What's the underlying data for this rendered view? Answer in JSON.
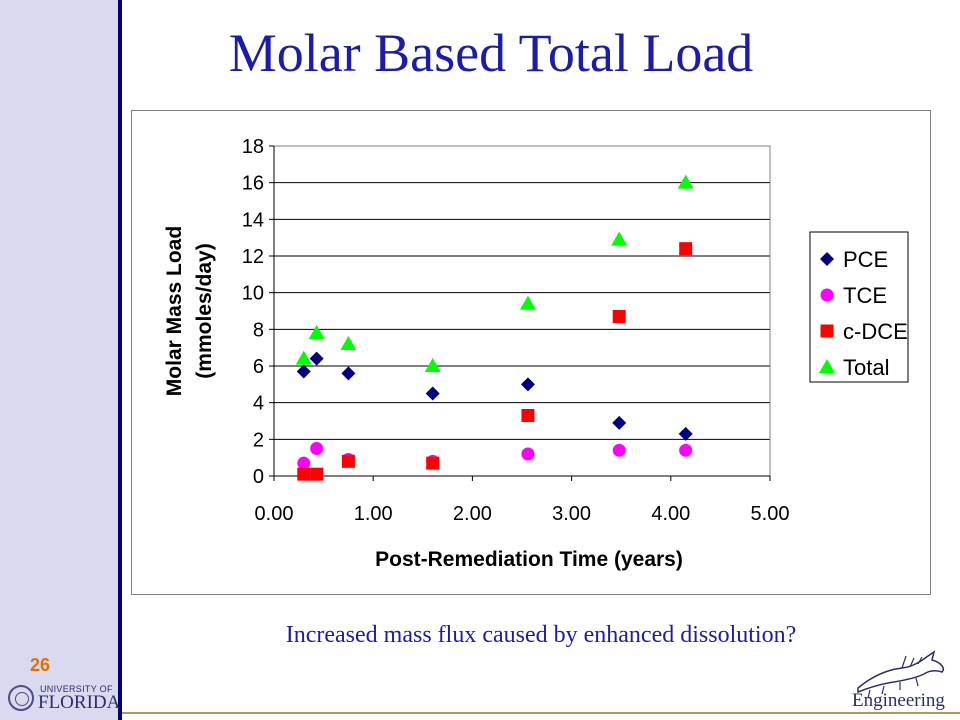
{
  "slide": {
    "title": "Molar Based Total Load",
    "caption": "Increased mass flux caused by enhanced dissolution?",
    "page_number": "26",
    "logo_left": {
      "line1": "UNIVERSITY OF",
      "line2": "FLORIDA"
    },
    "logo_right": {
      "text": "Engineering"
    },
    "colors": {
      "title": "#1c1caa",
      "sidebar": "#d9d9f0",
      "rule": "#000080",
      "page_number": "#e07000"
    }
  },
  "chart_data": {
    "type": "scatter",
    "title": "",
    "xlabel": "Post-Remediation Time (years)",
    "ylabel_lines": [
      "Molar Mass Load",
      "(mmoles/day)"
    ],
    "xlim": [
      0,
      5
    ],
    "ylim": [
      0,
      18
    ],
    "x_ticks": [
      "0.00",
      "1.00",
      "2.00",
      "3.00",
      "4.00",
      "5.00"
    ],
    "y_ticks": [
      "0",
      "2",
      "4",
      "6",
      "8",
      "10",
      "12",
      "14",
      "16",
      "18"
    ],
    "grid": "horizontal",
    "legend_position": "right",
    "series": [
      {
        "name": "PCE",
        "marker": "diamond",
        "color": "#000080",
        "points": [
          [
            0.3,
            5.7
          ],
          [
            0.43,
            6.4
          ],
          [
            0.75,
            5.6
          ],
          [
            1.6,
            4.5
          ],
          [
            2.56,
            5.0
          ],
          [
            3.48,
            2.9
          ],
          [
            4.15,
            2.3
          ]
        ]
      },
      {
        "name": "TCE",
        "marker": "circle",
        "color": "#ff00ff",
        "points": [
          [
            0.3,
            0.7
          ],
          [
            0.43,
            1.5
          ],
          [
            0.75,
            0.9
          ],
          [
            1.6,
            0.8
          ],
          [
            2.56,
            1.2
          ],
          [
            3.48,
            1.4
          ],
          [
            4.15,
            1.4
          ]
        ]
      },
      {
        "name": "c-DCE",
        "marker": "square",
        "color": "#ff0000",
        "points": [
          [
            0.3,
            0.1
          ],
          [
            0.43,
            0.1
          ],
          [
            0.75,
            0.8
          ],
          [
            1.6,
            0.7
          ],
          [
            2.56,
            3.3
          ],
          [
            3.48,
            8.7
          ],
          [
            4.15,
            12.4
          ]
        ]
      },
      {
        "name": "Total",
        "marker": "triangle",
        "color": "#00ff00",
        "points": [
          [
            0.3,
            6.4
          ],
          [
            0.43,
            7.8
          ],
          [
            0.75,
            7.2
          ],
          [
            1.6,
            6.0
          ],
          [
            2.56,
            9.4
          ],
          [
            3.48,
            12.9
          ],
          [
            4.15,
            16.0
          ]
        ]
      }
    ]
  }
}
